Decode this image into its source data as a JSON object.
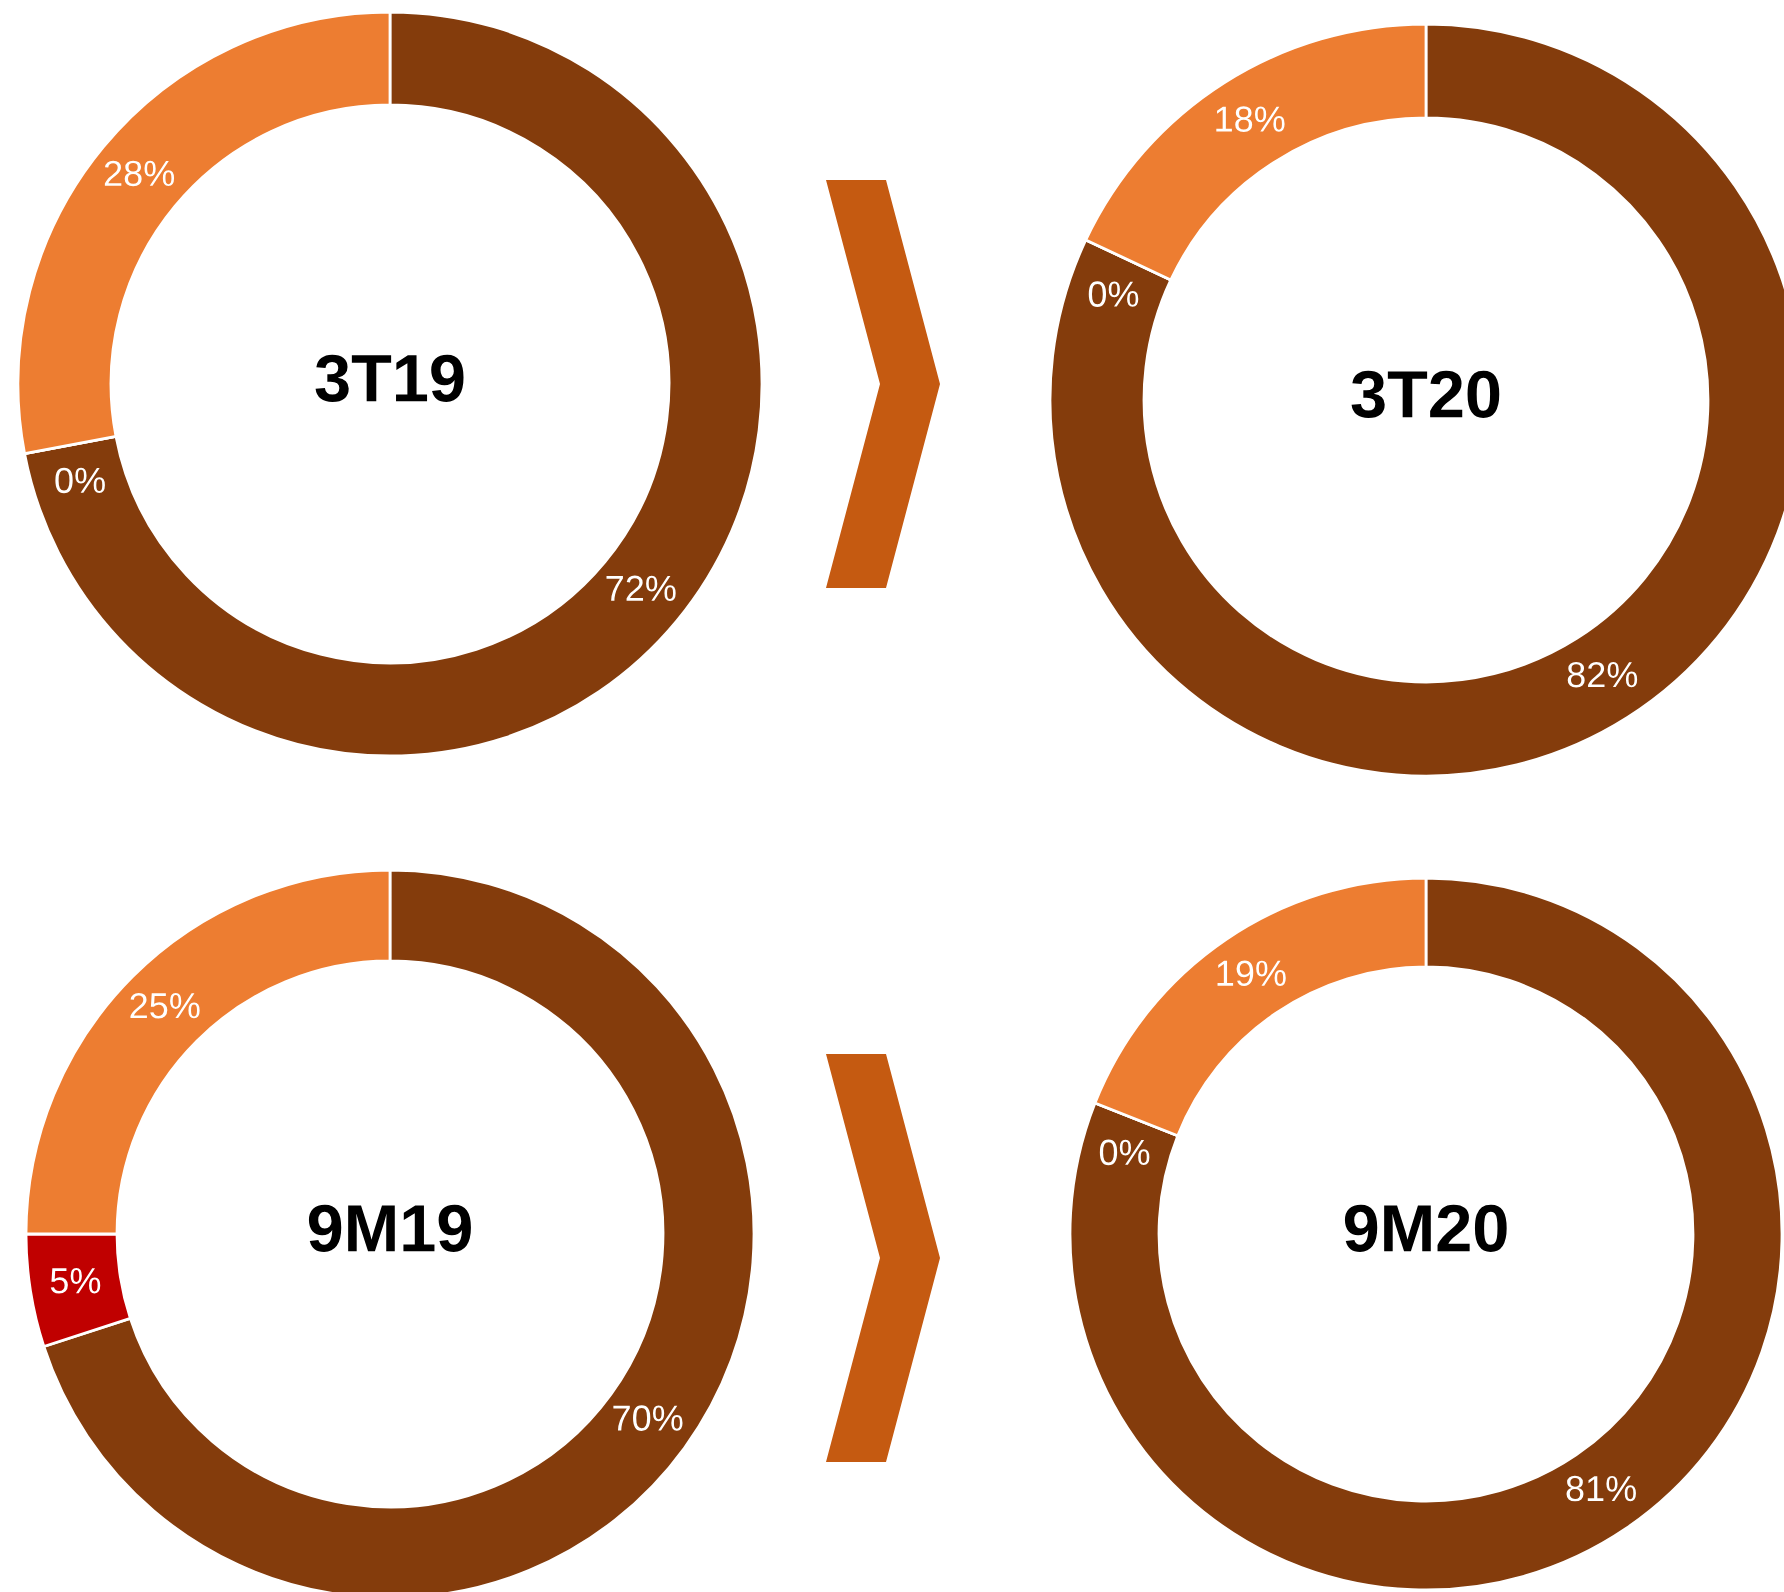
{
  "chart_data": [
    {
      "type": "donut",
      "title": "3T19",
      "categories": [
        null,
        null,
        null
      ],
      "values": [
        72,
        0,
        28
      ],
      "colors": [
        "#843c0c",
        "#c00000",
        "#ed7d31"
      ],
      "value_labels": [
        "72%",
        "0%",
        "28%"
      ]
    },
    {
      "type": "donut",
      "title": "3T20",
      "categories": [
        null,
        null,
        null
      ],
      "values": [
        82,
        0,
        18
      ],
      "colors": [
        "#843c0c",
        "#c00000",
        "#ed7d31"
      ],
      "value_labels": [
        "82%",
        "0%",
        "18%"
      ]
    },
    {
      "type": "donut",
      "title": "9M19",
      "categories": [
        null,
        null,
        null
      ],
      "values": [
        70,
        5,
        25
      ],
      "colors": [
        "#843c0c",
        "#c00000",
        "#ed7d31"
      ],
      "value_labels": [
        "70%",
        "5%",
        "25%"
      ]
    },
    {
      "type": "donut",
      "title": "9M20",
      "categories": [
        null,
        null,
        null
      ],
      "values": [
        81,
        0,
        19
      ],
      "colors": [
        "#843c0c",
        "#c00000",
        "#ed7d31"
      ],
      "value_labels": [
        "81%",
        "0%",
        "19%"
      ]
    }
  ]
}
